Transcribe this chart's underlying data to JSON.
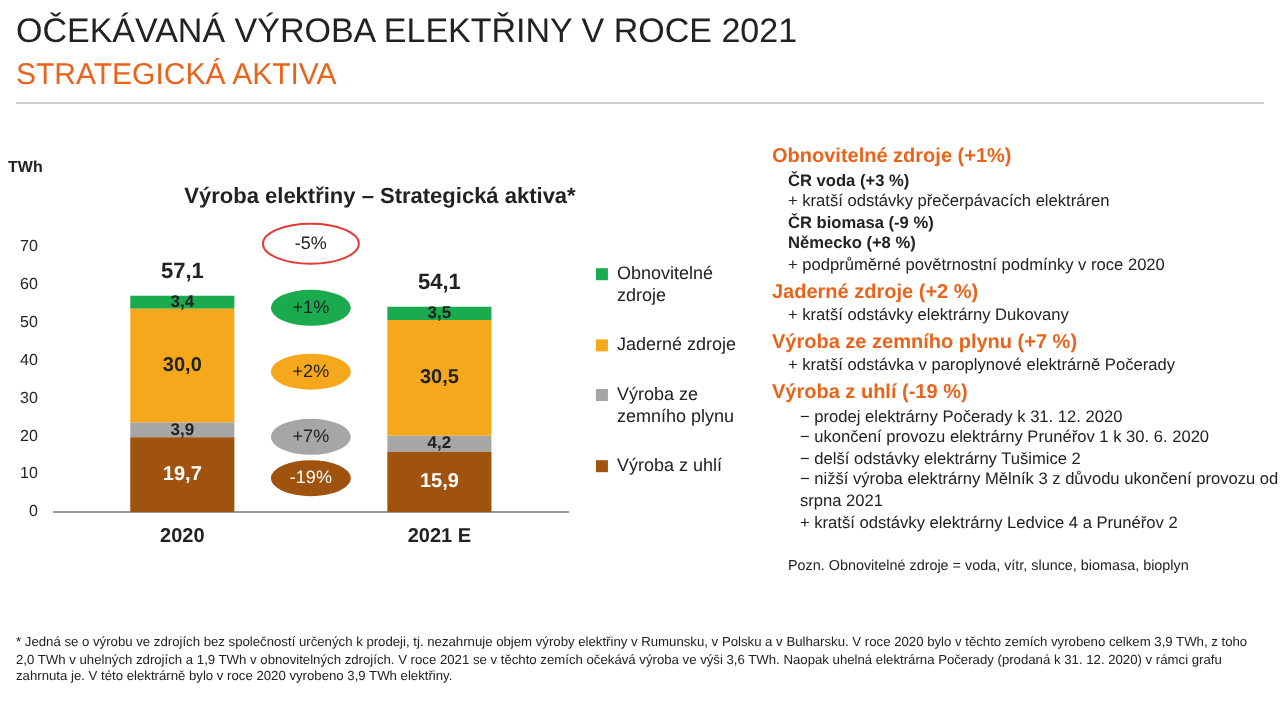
{
  "chart_data": {
    "type": "bar",
    "stacked": true,
    "title": "Výroba elektřiny – Strategická aktiva*",
    "ylabel": "TWh",
    "categories": [
      "2020",
      "2021 E"
    ],
    "series": [
      {
        "name": "Výroba z uhlí",
        "color": "#a0520f",
        "values": [
          19.7,
          15.9
        ],
        "value_labels": [
          "19,7",
          "15,9"
        ]
      },
      {
        "name": "Výroba ze zemního plynu",
        "color": "#a6a6a6",
        "values": [
          3.9,
          4.2
        ],
        "value_labels": [
          "3,9",
          "4,2"
        ]
      },
      {
        "name": "Jaderné zdroje",
        "color": "#f5a81c",
        "values": [
          30.0,
          30.5
        ],
        "value_labels": [
          "30,0",
          "30,5"
        ]
      },
      {
        "name": "Obnovitelné zdroje",
        "color": "#1aab4f",
        "values": [
          3.4,
          3.5
        ],
        "value_labels": [
          "3,4",
          "3,5"
        ]
      }
    ],
    "totals": [
      "57,1",
      "54,1"
    ],
    "ylim": [
      0,
      70
    ],
    "yticks": [
      0,
      10,
      20,
      30,
      40,
      50,
      60,
      70
    ],
    "grid": false,
    "legend": "right",
    "annotations": [
      "OČEKÁVANÁ VÝROBA ELEKTŘINY V ROCE 2021",
      "STRATEGICKÁ AKTIVA",
      "-5%",
      "-19%",
      "+7%",
      "+2%",
      "+1%",
      "Obnovitelné zdroje (+1%)",
      "ČR voda (+3 %)",
      "+ kratší odstávky přečerpávacích elektráren",
      "ČR biomasa (-9 %)",
      "Německo (+8 %)",
      "+ podprůměrné povětrnostní podmínky v roce 2020",
      "Jaderné zdroje (+2 %)",
      "+ kratší odstávky elektrárny Dukovany",
      "Výroba ze zemního plynu (+7 %)",
      "+ kratší odstávka v paroplynové elektrárně Počerady",
      "Výroba z uhlí (-19 %)",
      "− prodej elektrárny Počerady k 31. 12. 2020",
      "− ukončení provozu elektrárny Prunéřov 1 k 30. 6. 2020",
      "− delší odstávky elektrárny Tušimice 2",
      "− nižší výroba elektrárny Mělník 3 z důvodu ukončení provozu od srpna 2021",
      "+ kratší odstávky elektrárny Ledvice 4 a Prunéřov 2",
      "Pozn. Obnovitelné zdroje = voda, vítr, slunce, biomasa, bioplyn",
      "* Jedná se o výrobu ve zdrojích bez společností určených k prodeji, tj. nezahrnuje objem výroby elektřiny v Rumunsku, v Polsku a v Bulharsku. V roce 2020 bylo v těchto zemích vyrobeno celkem 3,9 TWh, z toho 2,0 TWh v uhelných zdrojích a 1,9 TWh v obnovitelných zdrojích. V roce 2021 se v těchto zemích očekává výroba ve výši 3,6 TWh. Naopak uhelná elektrárna Počerady (prodaná k 31. 12. 2020) v rámci grafu zahrnuta je. V této elektrárně bylo v roce 2020 vyrobeno 3,9 TWh elektřiny."
    ]
  }
}
